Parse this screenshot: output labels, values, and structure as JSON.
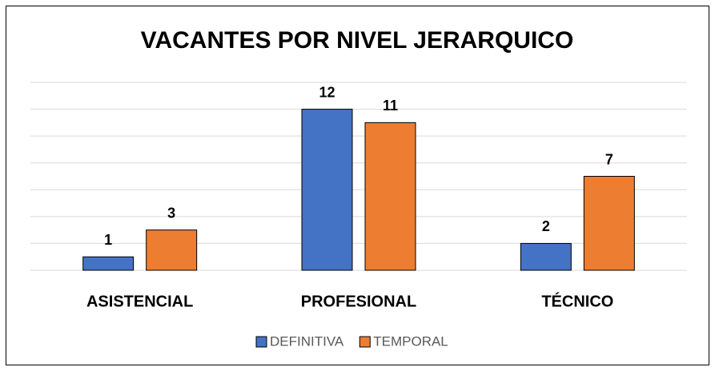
{
  "chart_data": {
    "type": "bar",
    "title": "VACANTES POR NIVEL JERARQUICO",
    "categories": [
      "ASISTENCIAL",
      "PROFESIONAL",
      "TÉCNICO"
    ],
    "series": [
      {
        "name": "DEFINITIVA",
        "color": "#4472c4",
        "values": [
          1,
          12,
          2
        ]
      },
      {
        "name": "TEMPORAL",
        "color": "#ed7d31",
        "values": [
          3,
          11,
          7
        ]
      }
    ],
    "ylim": [
      0,
      14
    ],
    "yticks": [
      0,
      2,
      4,
      6,
      8,
      10,
      12,
      14
    ],
    "grid": true,
    "legend": "bottom"
  }
}
